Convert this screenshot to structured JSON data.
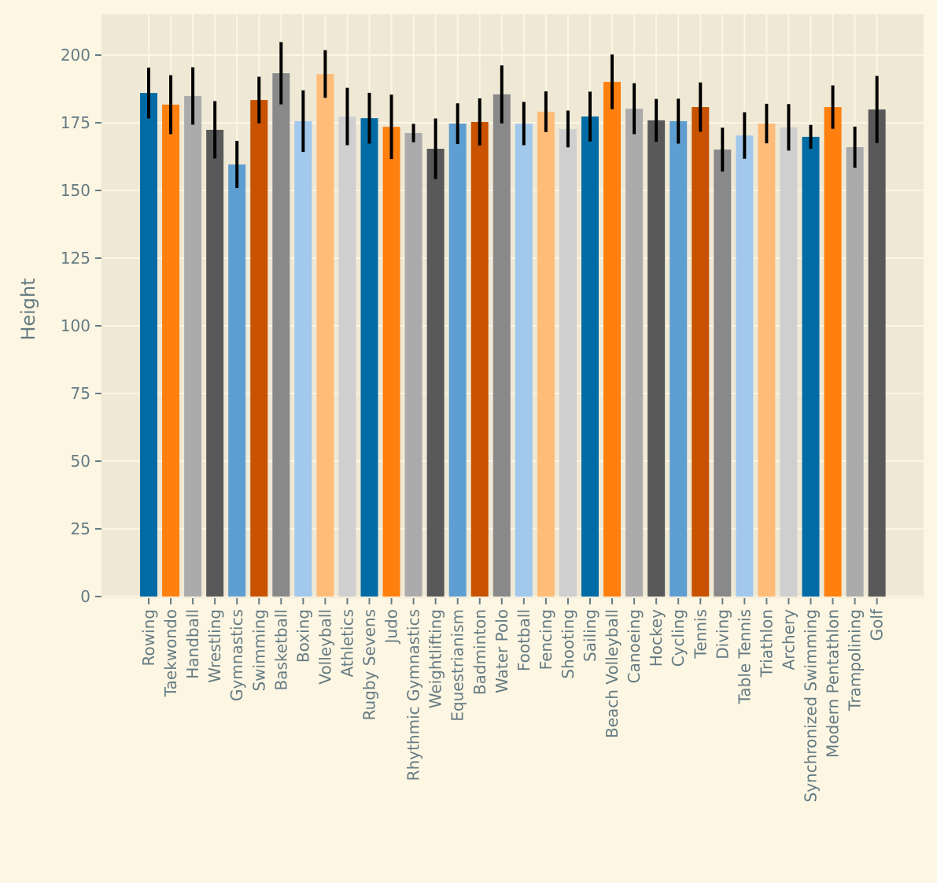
{
  "chart_data": {
    "type": "bar",
    "title": "",
    "xlabel": "",
    "ylabel": "Height",
    "ylim": [
      0,
      215
    ],
    "yticks": [
      0,
      25,
      50,
      75,
      100,
      125,
      150,
      175,
      200
    ],
    "grid": true,
    "legend": "none",
    "error_bars": true,
    "palette": [
      "#006BA4",
      "#FF800E",
      "#ABABAB",
      "#595959",
      "#5F9ED1",
      "#C85200",
      "#898989",
      "#A2C8EC",
      "#FFBC79",
      "#CFCFCF"
    ],
    "background": "#FDF6E3",
    "plot_background": "#EEE8D5",
    "grid_color": "#FDF6E3",
    "text_color": "#657B83",
    "error_color": "#000000",
    "categories": [
      "Rowing",
      "Taekwondo",
      "Handball",
      "Wrestling",
      "Gymnastics",
      "Swimming",
      "Basketball",
      "Boxing",
      "Volleyball",
      "Athletics",
      "Rugby Sevens",
      "Judo",
      "Rhythmic Gymnastics",
      "Weightlifting",
      "Equestrianism",
      "Badminton",
      "Water Polo",
      "Football",
      "Fencing",
      "Shooting",
      "Sailing",
      "Beach Volleyball",
      "Canoeing",
      "Hockey",
      "Cycling",
      "Tennis",
      "Diving",
      "Table Tennis",
      "Triathlon",
      "Archery",
      "Synchronized Swimming",
      "Modern Pentathlon",
      "Trampolining",
      "Golf"
    ],
    "values": [
      186.0,
      181.7,
      184.9,
      172.4,
      159.6,
      183.4,
      193.3,
      175.6,
      193.0,
      177.3,
      176.7,
      173.5,
      171.2,
      165.4,
      174.7,
      175.3,
      185.5,
      174.7,
      179.1,
      172.7,
      177.3,
      190.1,
      180.2,
      175.9,
      175.6,
      180.8,
      165.1,
      170.3,
      174.7,
      173.3,
      169.8,
      180.8,
      166.0,
      179.9
    ],
    "errors": [
      9.4,
      10.9,
      10.6,
      10.6,
      8.7,
      8.6,
      11.5,
      11.4,
      8.8,
      10.6,
      9.4,
      11.9,
      3.4,
      11.2,
      7.5,
      8.7,
      10.7,
      8.0,
      7.5,
      6.8,
      9.2,
      10.1,
      9.4,
      7.9,
      8.3,
      9.1,
      8.1,
      8.6,
      7.3,
      8.6,
      4.4,
      8.0,
      7.6,
      12.4
    ]
  }
}
